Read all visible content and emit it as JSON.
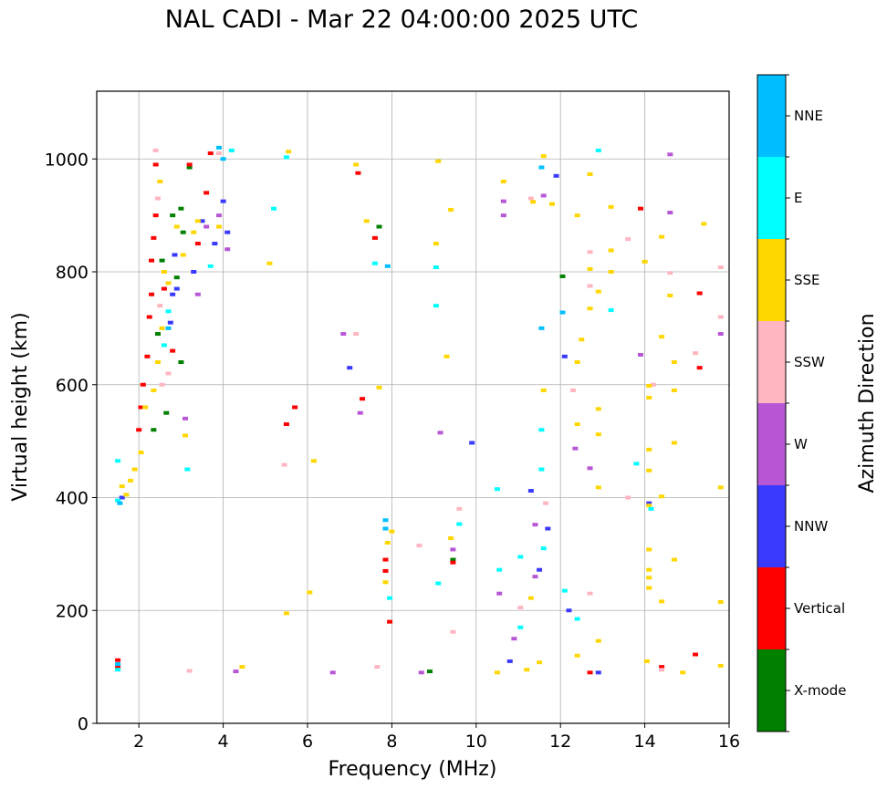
{
  "chart_data": {
    "type": "scatter",
    "title": "NAL CADI - Mar 22 04:00:00 2025 UTC",
    "xlabel": "Frequency (MHz)",
    "ylabel": "Virtual height (km)",
    "xlim": [
      1,
      16
    ],
    "ylim": [
      0,
      1120
    ],
    "xticks": [
      2,
      4,
      6,
      8,
      10,
      12,
      14,
      16
    ],
    "yticks": [
      0,
      200,
      400,
      600,
      800,
      1000
    ],
    "grid": true,
    "colorbar": {
      "title": "Azimuth Direction",
      "categories": [
        "X-mode",
        "Vertical",
        "NNW",
        "W",
        "SSW",
        "SSE",
        "E",
        "NNE"
      ],
      "colors": [
        "#008000",
        "#ff0000",
        "#3a3aff",
        "#b857d6",
        "#ffb6c1",
        "#ffd700",
        "#00ffff",
        "#00bfff"
      ]
    },
    "series": [
      {
        "name": "X-mode",
        "points": [
          [
            2.35,
            520
          ],
          [
            2.45,
            690
          ],
          [
            2.55,
            820
          ],
          [
            2.8,
            900
          ],
          [
            3.0,
            912
          ],
          [
            3.05,
            870
          ],
          [
            3.2,
            985
          ],
          [
            3.0,
            640
          ],
          [
            2.9,
            790
          ],
          [
            8.9,
            92
          ],
          [
            9.45,
            290
          ],
          [
            12.05,
            792
          ],
          [
            7.7,
            880
          ],
          [
            2.65,
            550
          ]
        ]
      },
      {
        "name": "Vertical",
        "points": [
          [
            1.5,
            100
          ],
          [
            1.5,
            112
          ],
          [
            2.0,
            520
          ],
          [
            2.05,
            560
          ],
          [
            2.1,
            600
          ],
          [
            2.2,
            650
          ],
          [
            2.25,
            720
          ],
          [
            2.3,
            760
          ],
          [
            2.3,
            820
          ],
          [
            2.35,
            860
          ],
          [
            2.4,
            900
          ],
          [
            2.4,
            990
          ],
          [
            2.6,
            770
          ],
          [
            3.2,
            990
          ],
          [
            3.4,
            850
          ],
          [
            2.8,
            660
          ],
          [
            3.6,
            940
          ],
          [
            3.7,
            1010
          ],
          [
            5.5,
            530
          ],
          [
            5.7,
            560
          ],
          [
            7.2,
            975
          ],
          [
            7.3,
            575
          ],
          [
            7.6,
            860
          ],
          [
            7.85,
            270
          ],
          [
            7.85,
            290
          ],
          [
            7.95,
            180
          ],
          [
            9.45,
            285
          ],
          [
            12.7,
            90
          ],
          [
            13.9,
            912
          ],
          [
            15.2,
            122
          ],
          [
            15.3,
            762
          ],
          [
            15.3,
            630
          ],
          [
            14.4,
            100
          ]
        ]
      },
      {
        "name": "NNW",
        "points": [
          [
            1.6,
            400
          ],
          [
            2.75,
            710
          ],
          [
            2.8,
            760
          ],
          [
            2.85,
            830
          ],
          [
            2.9,
            770
          ],
          [
            3.3,
            800
          ],
          [
            3.5,
            890
          ],
          [
            3.8,
            850
          ],
          [
            4.0,
            925
          ],
          [
            4.1,
            870
          ],
          [
            7.0,
            630
          ],
          [
            9.9,
            497
          ],
          [
            11.3,
            412
          ],
          [
            11.7,
            345
          ],
          [
            11.9,
            970
          ],
          [
            12.1,
            650
          ],
          [
            12.2,
            200
          ],
          [
            12.9,
            90
          ],
          [
            10.8,
            110
          ],
          [
            14.1,
            390
          ],
          [
            11.5,
            272
          ]
        ]
      },
      {
        "name": "W",
        "points": [
          [
            3.1,
            540
          ],
          [
            3.4,
            760
          ],
          [
            3.6,
            880
          ],
          [
            3.9,
            900
          ],
          [
            4.1,
            840
          ],
          [
            4.3,
            92
          ],
          [
            6.6,
            90
          ],
          [
            6.85,
            690
          ],
          [
            7.25,
            550
          ],
          [
            8.7,
            90
          ],
          [
            9.15,
            515
          ],
          [
            9.45,
            308
          ],
          [
            10.55,
            230
          ],
          [
            10.65,
            925
          ],
          [
            10.65,
            900
          ],
          [
            10.9,
            150
          ],
          [
            11.4,
            352
          ],
          [
            11.6,
            935
          ],
          [
            12.35,
            487
          ],
          [
            12.7,
            452
          ],
          [
            13.9,
            653
          ],
          [
            14.6,
            1008
          ],
          [
            14.6,
            905
          ],
          [
            15.8,
            690
          ],
          [
            11.4,
            260
          ]
        ]
      },
      {
        "name": "SSW",
        "points": [
          [
            2.4,
            1015
          ],
          [
            2.45,
            930
          ],
          [
            2.5,
            740
          ],
          [
            2.55,
            600
          ],
          [
            2.7,
            620
          ],
          [
            3.2,
            93
          ],
          [
            3.9,
            1010
          ],
          [
            5.45,
            458
          ],
          [
            7.15,
            690
          ],
          [
            7.65,
            100
          ],
          [
            8.65,
            315
          ],
          [
            9.6,
            380
          ],
          [
            9.45,
            162
          ],
          [
            11.05,
            205
          ],
          [
            11.3,
            930
          ],
          [
            11.65,
            390
          ],
          [
            12.3,
            590
          ],
          [
            12.7,
            230
          ],
          [
            12.7,
            775
          ],
          [
            12.7,
            835
          ],
          [
            13.6,
            858
          ],
          [
            13.6,
            400
          ],
          [
            14.2,
            600
          ],
          [
            14.4,
            95
          ],
          [
            14.6,
            798
          ],
          [
            15.2,
            656
          ],
          [
            15.8,
            808
          ],
          [
            15.8,
            720
          ]
        ]
      },
      {
        "name": "SSE",
        "points": [
          [
            1.6,
            420
          ],
          [
            1.7,
            405
          ],
          [
            1.8,
            430
          ],
          [
            1.9,
            450
          ],
          [
            2.05,
            480
          ],
          [
            2.15,
            560
          ],
          [
            2.35,
            590
          ],
          [
            2.45,
            640
          ],
          [
            2.5,
            960
          ],
          [
            2.55,
            700
          ],
          [
            2.6,
            800
          ],
          [
            2.7,
            780
          ],
          [
            2.9,
            880
          ],
          [
            3.05,
            830
          ],
          [
            3.1,
            510
          ],
          [
            3.3,
            870
          ],
          [
            3.4,
            890
          ],
          [
            3.9,
            880
          ],
          [
            4.45,
            100
          ],
          [
            5.1,
            815
          ],
          [
            5.5,
            195
          ],
          [
            5.55,
            1013
          ],
          [
            6.05,
            232
          ],
          [
            6.15,
            465
          ],
          [
            7.15,
            990
          ],
          [
            7.4,
            890
          ],
          [
            7.7,
            595
          ],
          [
            7.85,
            250
          ],
          [
            7.9,
            320
          ],
          [
            8.0,
            340
          ],
          [
            9.1,
            996
          ],
          [
            9.05,
            850
          ],
          [
            9.3,
            650
          ],
          [
            9.4,
            910
          ],
          [
            9.4,
            328
          ],
          [
            10.5,
            90
          ],
          [
            10.65,
            960
          ],
          [
            11.2,
            95
          ],
          [
            11.3,
            222
          ],
          [
            11.35,
            924
          ],
          [
            11.5,
            108
          ],
          [
            11.6,
            1005
          ],
          [
            11.6,
            590
          ],
          [
            11.8,
            920
          ],
          [
            12.4,
            120
          ],
          [
            12.4,
            900
          ],
          [
            12.4,
            640
          ],
          [
            12.4,
            530
          ],
          [
            12.5,
            680
          ],
          [
            12.7,
            973
          ],
          [
            12.7,
            735
          ],
          [
            12.7,
            805
          ],
          [
            12.9,
            765
          ],
          [
            12.9,
            557
          ],
          [
            12.9,
            512
          ],
          [
            12.9,
            418
          ],
          [
            12.9,
            146
          ],
          [
            13.2,
            915
          ],
          [
            13.2,
            838
          ],
          [
            13.2,
            800
          ],
          [
            14.0,
            818
          ],
          [
            14.05,
            110
          ],
          [
            14.1,
            598
          ],
          [
            14.1,
            577
          ],
          [
            14.1,
            485
          ],
          [
            14.1,
            448
          ],
          [
            14.1,
            386
          ],
          [
            14.1,
            308
          ],
          [
            14.1,
            258
          ],
          [
            14.1,
            240
          ],
          [
            14.1,
            272
          ],
          [
            14.4,
            862
          ],
          [
            14.4,
            685
          ],
          [
            14.4,
            216
          ],
          [
            14.4,
            402
          ],
          [
            14.6,
            758
          ],
          [
            14.7,
            640
          ],
          [
            14.7,
            590
          ],
          [
            14.7,
            497
          ],
          [
            14.7,
            290
          ],
          [
            14.9,
            90
          ],
          [
            15.4,
            885
          ],
          [
            15.8,
            418
          ],
          [
            15.8,
            215
          ],
          [
            15.8,
            102
          ]
        ]
      },
      {
        "name": "E",
        "points": [
          [
            1.5,
            395
          ],
          [
            1.5,
            465
          ],
          [
            1.5,
            95
          ],
          [
            2.6,
            670
          ],
          [
            2.7,
            730
          ],
          [
            3.15,
            450
          ],
          [
            3.7,
            810
          ],
          [
            4.2,
            1015
          ],
          [
            5.2,
            912
          ],
          [
            5.5,
            1003
          ],
          [
            7.6,
            815
          ],
          [
            7.95,
            222
          ],
          [
            9.05,
            808
          ],
          [
            9.05,
            740
          ],
          [
            9.1,
            248
          ],
          [
            9.6,
            353
          ],
          [
            10.5,
            415
          ],
          [
            10.55,
            272
          ],
          [
            11.05,
            295
          ],
          [
            11.05,
            170
          ],
          [
            11.55,
            520
          ],
          [
            11.55,
            450
          ],
          [
            11.6,
            310
          ],
          [
            12.1,
            235
          ],
          [
            12.4,
            185
          ],
          [
            12.9,
            1015
          ],
          [
            13.2,
            732
          ],
          [
            13.8,
            460
          ],
          [
            14.15,
            380
          ]
        ]
      },
      {
        "name": "NNE",
        "points": [
          [
            1.5,
            105
          ],
          [
            1.55,
            390
          ],
          [
            2.7,
            700
          ],
          [
            3.9,
            1020
          ],
          [
            4.0,
            1000
          ],
          [
            7.85,
            345
          ],
          [
            7.85,
            360
          ],
          [
            7.9,
            810
          ],
          [
            11.55,
            985
          ],
          [
            11.55,
            700
          ],
          [
            12.05,
            728
          ]
        ]
      }
    ]
  }
}
